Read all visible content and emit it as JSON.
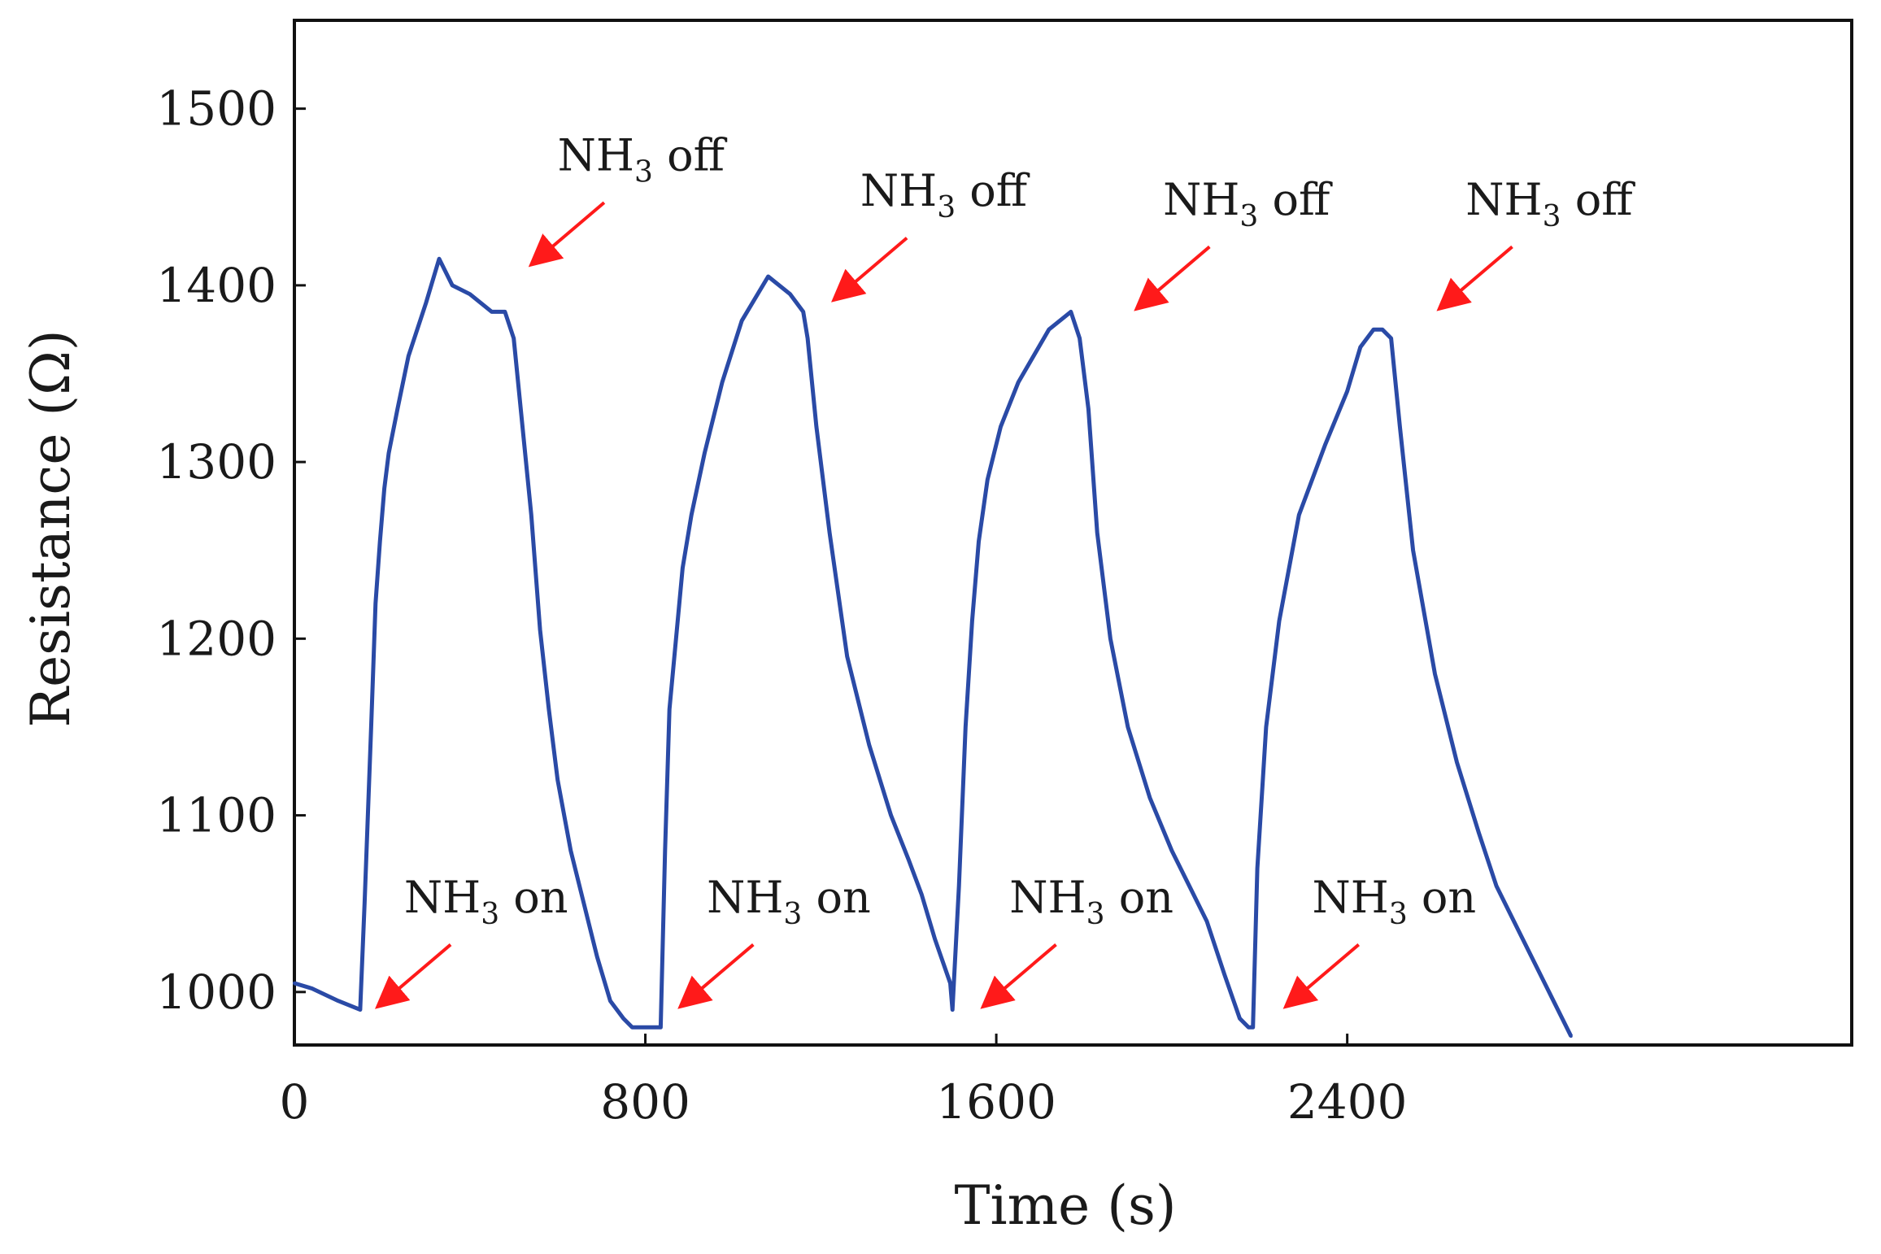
{
  "chart_data": {
    "type": "line",
    "title": "",
    "xlabel": "Time (s)",
    "ylabel": "Resistance (Ω)",
    "xlim": [
      0,
      3550
    ],
    "ylim": [
      970,
      1550
    ],
    "xticks": [
      0,
      800,
      1600,
      2400
    ],
    "xtick_labels": [
      "0",
      "800",
      "1600",
      "2400"
    ],
    "yticks": [
      1000,
      1100,
      1200,
      1300,
      1400,
      1500
    ],
    "ytick_labels": [
      "1000",
      "1100",
      "1200",
      "1300",
      "1400",
      "1500"
    ],
    "grid": false,
    "legend": "none",
    "series": [
      {
        "name": "Resistance",
        "color": "#2a4aa6",
        "x": [
          0,
          40,
          100,
          150,
          160,
          175,
          185,
          195,
          205,
          215,
          235,
          260,
          300,
          330,
          360,
          400,
          450,
          480,
          500,
          520,
          540,
          560,
          580,
          600,
          630,
          660,
          690,
          720,
          750,
          770,
          800,
          835,
          845,
          855,
          870,
          885,
          905,
          935,
          975,
          1020,
          1080,
          1130,
          1160,
          1170,
          1190,
          1220,
          1260,
          1310,
          1360,
          1400,
          1430,
          1460,
          1495,
          1500,
          1515,
          1530,
          1545,
          1560,
          1580,
          1610,
          1650,
          1720,
          1770,
          1790,
          1810,
          1830,
          1860,
          1900,
          1950,
          2000,
          2040,
          2080,
          2120,
          2155,
          2175,
          2185,
          2195,
          2215,
          2245,
          2290,
          2350,
          2400,
          2430,
          2460,
          2480,
          2500,
          2520,
          2550,
          2600,
          2650,
          2700,
          2740,
          2780,
          2820,
          2860,
          2890,
          2910
        ],
        "y": [
          1005,
          1002,
          995,
          990,
          1050,
          1150,
          1220,
          1255,
          1285,
          1305,
          1330,
          1360,
          1390,
          1415,
          1400,
          1395,
          1385,
          1385,
          1370,
          1320,
          1270,
          1205,
          1160,
          1120,
          1080,
          1050,
          1020,
          995,
          985,
          980,
          980,
          980,
          1080,
          1160,
          1200,
          1240,
          1270,
          1305,
          1345,
          1380,
          1405,
          1395,
          1385,
          1370,
          1320,
          1260,
          1190,
          1140,
          1100,
          1075,
          1055,
          1030,
          1005,
          990,
          1060,
          1150,
          1210,
          1255,
          1290,
          1320,
          1345,
          1375,
          1385,
          1370,
          1330,
          1260,
          1200,
          1150,
          1110,
          1080,
          1060,
          1040,
          1010,
          985,
          980,
          980,
          1070,
          1150,
          1210,
          1270,
          1310,
          1340,
          1365,
          1375,
          1375,
          1370,
          1320,
          1250,
          1180,
          1130,
          1090,
          1060,
          1040,
          1020,
          1000,
          985,
          975
        ]
      }
    ],
    "annotations": [
      {
        "kind": "on",
        "main": "NH",
        "sub": "3",
        "rest": " on",
        "x": 180,
        "y": 990,
        "text_x": 250,
        "text_y": 1045
      },
      {
        "kind": "on",
        "main": "NH",
        "sub": "3",
        "rest": " on",
        "x": 870,
        "y": 990,
        "text_x": 940,
        "text_y": 1045
      },
      {
        "kind": "on",
        "main": "NH",
        "sub": "3",
        "rest": " on",
        "x": 1560,
        "y": 990,
        "text_x": 1630,
        "text_y": 1045
      },
      {
        "kind": "on",
        "main": "NH",
        "sub": "3",
        "rest": " on",
        "x": 2250,
        "y": 990,
        "text_x": 2320,
        "text_y": 1045
      },
      {
        "kind": "off",
        "main": "NH",
        "sub": "3",
        "rest": " off",
        "x": 530,
        "y": 1410,
        "text_x": 600,
        "text_y": 1465
      },
      {
        "kind": "off",
        "main": "NH",
        "sub": "3",
        "rest": " off",
        "x": 1220,
        "y": 1390,
        "text_x": 1290,
        "text_y": 1445
      },
      {
        "kind": "off",
        "main": "NH",
        "sub": "3",
        "rest": " off",
        "x": 1910,
        "y": 1385,
        "text_x": 1980,
        "text_y": 1440
      },
      {
        "kind": "off",
        "main": "NH",
        "sub": "3",
        "rest": " off",
        "x": 2600,
        "y": 1385,
        "text_x": 2670,
        "text_y": 1440
      }
    ],
    "arrow_color": "#ff1a1a"
  }
}
